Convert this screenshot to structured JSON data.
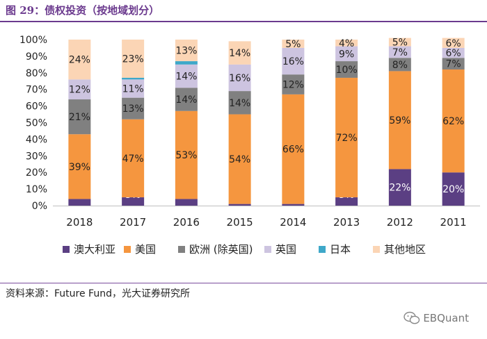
{
  "figure": {
    "title": "图 29：债权投资（按地域划分）",
    "source": "资料来源：Future Fund，光大证券研究所",
    "watermark": "EBQuant",
    "watermark_icon": "wechat-icon"
  },
  "chart_data": {
    "type": "bar",
    "stacked": true,
    "percent": true,
    "categories": [
      "2018",
      "2017",
      "2016",
      "2015",
      "2014",
      "2013",
      "2012",
      "2011"
    ],
    "yticks": [
      "0%",
      "10%",
      "20%",
      "30%",
      "40%",
      "50%",
      "60%",
      "70%",
      "80%",
      "90%",
      "100%"
    ],
    "ylim": [
      0,
      100
    ],
    "legend_position": "bottom",
    "series": [
      {
        "name": "澳大利亚",
        "color": "#5b3f83",
        "values": [
          4,
          5,
          4,
          1,
          1,
          5,
          22,
          20
        ],
        "labels": [
          "4%",
          "5%",
          "4%",
          "1%",
          "1%",
          "5%",
          "22%",
          "20%"
        ],
        "label_color": "#ffffff"
      },
      {
        "name": "美国",
        "color": "#f5963f",
        "values": [
          39,
          47,
          53,
          54,
          66,
          72,
          59,
          62
        ],
        "labels": [
          "39%",
          "47%",
          "53%",
          "54%",
          "66%",
          "72%",
          "59%",
          "62%"
        ],
        "label_color": "#222222"
      },
      {
        "name": "欧洲 (除英国)",
        "color": "#808080",
        "values": [
          21,
          13,
          14,
          14,
          12,
          10,
          8,
          7
        ],
        "labels": [
          "21%",
          "13%",
          "14%",
          "14%",
          "12%",
          "10%",
          "8%",
          "7%"
        ],
        "label_color": "#222222"
      },
      {
        "name": "英国",
        "color": "#cdc4e0",
        "values": [
          12,
          11,
          14,
          16,
          16,
          9,
          7,
          6
        ],
        "labels": [
          "12%",
          "11%",
          "14%",
          "16%",
          "16%",
          "9%",
          "7%",
          "6%"
        ],
        "label_color": "#222222"
      },
      {
        "name": "日本",
        "color": "#3ea8c9",
        "values": [
          0,
          1,
          2,
          0,
          0,
          0,
          0,
          0
        ],
        "labels": [
          "",
          "",
          "",
          "",
          "",
          "",
          "",
          ""
        ],
        "label_color": "#222222"
      },
      {
        "name": "其他地区",
        "color": "#fbd5b5",
        "values": [
          24,
          23,
          13,
          14,
          5,
          4,
          5,
          6
        ],
        "labels": [
          "24%",
          "23%",
          "13%",
          "14%",
          "5%",
          "4%",
          "5%",
          "6%"
        ],
        "label_color": "#222222"
      }
    ]
  }
}
